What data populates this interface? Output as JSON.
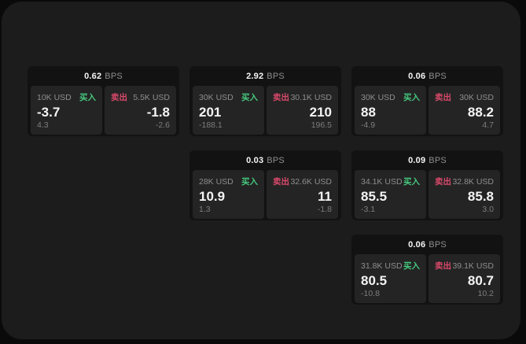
{
  "theme": {
    "outer_bg": "#0a0a0a",
    "window_bg": "#1c1c1c",
    "card_bg": "#121212",
    "panel_bg": "#242424",
    "text_primary": "#f5f5f5",
    "text_muted": "#8e8e8e",
    "text_dim": "#7d7d7d",
    "buy_color": "#46c87e",
    "sell_color": "#d8496b"
  },
  "cards": [
    {
      "row": 1,
      "col": 1,
      "bps_value": "0.62",
      "bps_unit": "BPS",
      "buy": {
        "size": "10K USD",
        "side_label": "买入",
        "price": "-3.7",
        "delta": "4.3"
      },
      "sell": {
        "side_label": "卖出",
        "size": "5.5K USD",
        "price": "-1.8",
        "delta": "-2.6"
      }
    },
    {
      "row": 1,
      "col": 2,
      "bps_value": "2.92",
      "bps_unit": "BPS",
      "buy": {
        "size": "30K USD",
        "side_label": "买入",
        "price": "201",
        "delta": "-188.1"
      },
      "sell": {
        "side_label": "卖出",
        "size": "30.1K USD",
        "price": "210",
        "delta": "196.5"
      }
    },
    {
      "row": 1,
      "col": 3,
      "bps_value": "0.06",
      "bps_unit": "BPS",
      "buy": {
        "size": "30K USD",
        "side_label": "买入",
        "price": "88",
        "delta": "-4.9"
      },
      "sell": {
        "side_label": "卖出",
        "size": "30K USD",
        "price": "88.2",
        "delta": "4.7"
      }
    },
    {
      "row": 2,
      "col": 2,
      "bps_value": "0.03",
      "bps_unit": "BPS",
      "buy": {
        "size": "28K USD",
        "side_label": "买入",
        "price": "10.9",
        "delta": "1.3"
      },
      "sell": {
        "side_label": "卖出",
        "size": "32.6K USD",
        "price": "11",
        "delta": "-1.8"
      }
    },
    {
      "row": 2,
      "col": 3,
      "bps_value": "0.09",
      "bps_unit": "BPS",
      "buy": {
        "size": "34.1K USD",
        "side_label": "买入",
        "price": "85.5",
        "delta": "-3.1"
      },
      "sell": {
        "side_label": "卖出",
        "size": "32.8K USD",
        "price": "85.8",
        "delta": "3.0"
      }
    },
    {
      "row": 3,
      "col": 3,
      "bps_value": "0.06",
      "bps_unit": "BPS",
      "buy": {
        "size": "31.8K USD",
        "side_label": "买入",
        "price": "80.5",
        "delta": "-10.8"
      },
      "sell": {
        "side_label": "卖出",
        "size": "39.1K USD",
        "price": "80.7",
        "delta": "10.2"
      }
    }
  ]
}
